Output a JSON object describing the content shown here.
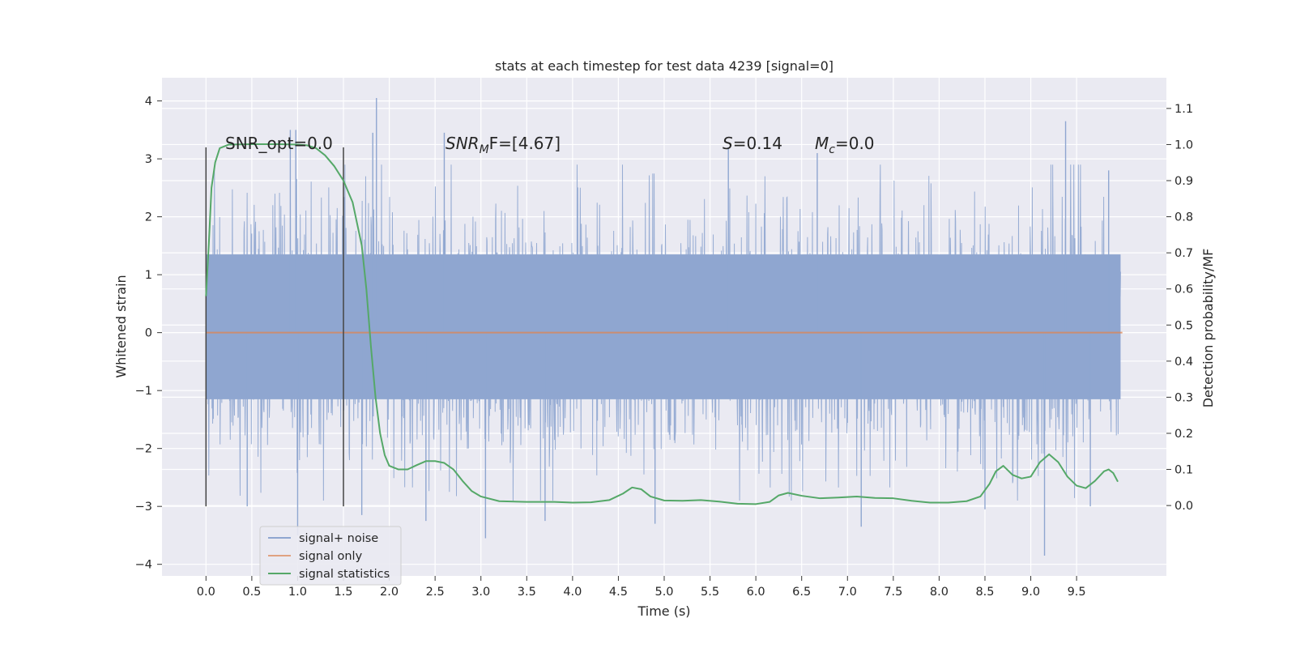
{
  "chart_data": {
    "type": "line",
    "title": "stats at each timestep for test data 4239 [signal=0]",
    "xlabel": "Time (s)",
    "ylabel": "Whitened strain",
    "ylabel_right": "Detection probability/MF",
    "xlim": [
      -0.48,
      10.48
    ],
    "ylim": [
      -4.2,
      4.4
    ],
    "ylim_right": [
      -0.195,
      1.185
    ],
    "x_ticks": [
      "0.0",
      "0.5",
      "1.0",
      "1.5",
      "2.0",
      "2.5",
      "3.0",
      "3.5",
      "4.0",
      "4.5",
      "5.0",
      "5.5",
      "6.0",
      "6.5",
      "7.0",
      "7.5",
      "8.0",
      "8.5",
      "9.0",
      "9.5"
    ],
    "y_ticks": [
      "4",
      "3",
      "2",
      "1",
      "0",
      "−1",
      "−2",
      "−3",
      "−4"
    ],
    "y_right_ticks": [
      "1.1",
      "1.0",
      "0.9",
      "0.8",
      "0.7",
      "0.6",
      "0.5",
      "0.4",
      "0.3",
      "0.2",
      "0.1",
      "0.0"
    ],
    "grid": true,
    "legend_position": "lower-left",
    "colors": {
      "noise": "#8fa6d0",
      "signal": "#dd8452",
      "stats": "#55a868",
      "markers": "#444444",
      "axes_bg": "#eaeaf2",
      "grid": "#ffffff"
    },
    "vertical_markers": [
      0.0,
      1.5
    ],
    "vertical_marker_range": [
      -3.0,
      3.2
    ],
    "annotations": {
      "snr_opt": "SNR_opt=0.0",
      "snr_mf_symbol": "SNR",
      "snr_mf_sub": "M",
      "snr_mf_value": "F=[4.67]",
      "s_symbol": "S",
      "s_value": "=0.14",
      "mc_symbol": "M",
      "mc_sub": "c",
      "mc_value": "=0.0"
    },
    "series": [
      {
        "name": "signal+ noise",
        "kind": "noise",
        "t_range": [
          0.0,
          9.98
        ],
        "core_band": [
          -1.15,
          1.35
        ],
        "spikes": [
          {
            "x": 0.92,
            "y": 3.5
          },
          {
            "x": 0.98,
            "y": 3.5
          },
          {
            "x": 1.82,
            "y": 3.45
          },
          {
            "x": 1.86,
            "y": 4.05
          },
          {
            "x": 2.6,
            "y": 3.45
          },
          {
            "x": 5.7,
            "y": 3.2
          },
          {
            "x": 6.67,
            "y": 3.1
          },
          {
            "x": 9.38,
            "y": 3.65
          },
          {
            "x": 9.85,
            "y": 2.8
          },
          {
            "x": 1.0,
            "y": -3.5
          },
          {
            "x": 3.05,
            "y": -3.55
          },
          {
            "x": 9.15,
            "y": -3.85
          },
          {
            "x": 7.15,
            "y": -3.35
          },
          {
            "x": 2.4,
            "y": -3.25
          },
          {
            "x": 0.45,
            "y": -3.0
          },
          {
            "x": 4.9,
            "y": -3.3
          },
          {
            "x": 1.7,
            "y": -3.15
          },
          {
            "x": 8.5,
            "y": -3.05
          },
          {
            "x": 9.65,
            "y": -3.0
          },
          {
            "x": 3.7,
            "y": -3.25
          }
        ]
      },
      {
        "name": "signal only",
        "kind": "signal",
        "points": [
          [
            0.0,
            0.0
          ],
          [
            10.0,
            0.0
          ]
        ]
      },
      {
        "name": "signal statistics",
        "kind": "stats",
        "axis": "right",
        "points": [
          [
            0.0,
            0.58
          ],
          [
            0.03,
            0.72
          ],
          [
            0.06,
            0.88
          ],
          [
            0.1,
            0.95
          ],
          [
            0.15,
            0.99
          ],
          [
            0.25,
            1.0
          ],
          [
            0.5,
            1.001
          ],
          [
            0.8,
            1.001
          ],
          [
            1.0,
            1.0
          ],
          [
            1.1,
            0.998
          ],
          [
            1.2,
            0.99
          ],
          [
            1.3,
            0.97
          ],
          [
            1.4,
            0.94
          ],
          [
            1.5,
            0.9
          ],
          [
            1.6,
            0.84
          ],
          [
            1.7,
            0.72
          ],
          [
            1.75,
            0.6
          ],
          [
            1.8,
            0.44
          ],
          [
            1.85,
            0.3
          ],
          [
            1.9,
            0.2
          ],
          [
            1.95,
            0.14
          ],
          [
            2.0,
            0.11
          ],
          [
            2.1,
            0.1
          ],
          [
            2.2,
            0.1
          ],
          [
            2.3,
            0.112
          ],
          [
            2.4,
            0.123
          ],
          [
            2.5,
            0.123
          ],
          [
            2.6,
            0.118
          ],
          [
            2.7,
            0.1
          ],
          [
            2.8,
            0.068
          ],
          [
            2.9,
            0.04
          ],
          [
            3.0,
            0.025
          ],
          [
            3.2,
            0.012
          ],
          [
            3.5,
            0.01
          ],
          [
            3.8,
            0.01
          ],
          [
            4.0,
            0.008
          ],
          [
            4.2,
            0.009
          ],
          [
            4.4,
            0.015
          ],
          [
            4.55,
            0.033
          ],
          [
            4.65,
            0.05
          ],
          [
            4.75,
            0.045
          ],
          [
            4.85,
            0.025
          ],
          [
            5.0,
            0.014
          ],
          [
            5.2,
            0.013
          ],
          [
            5.4,
            0.015
          ],
          [
            5.6,
            0.011
          ],
          [
            5.8,
            0.005
          ],
          [
            6.0,
            0.004
          ],
          [
            6.15,
            0.01
          ],
          [
            6.25,
            0.028
          ],
          [
            6.35,
            0.035
          ],
          [
            6.5,
            0.027
          ],
          [
            6.7,
            0.02
          ],
          [
            6.9,
            0.022
          ],
          [
            7.1,
            0.025
          ],
          [
            7.3,
            0.021
          ],
          [
            7.5,
            0.02
          ],
          [
            7.7,
            0.013
          ],
          [
            7.9,
            0.008
          ],
          [
            8.1,
            0.008
          ],
          [
            8.3,
            0.012
          ],
          [
            8.45,
            0.025
          ],
          [
            8.55,
            0.06
          ],
          [
            8.62,
            0.095
          ],
          [
            8.7,
            0.11
          ],
          [
            8.8,
            0.085
          ],
          [
            8.9,
            0.075
          ],
          [
            9.0,
            0.08
          ],
          [
            9.1,
            0.12
          ],
          [
            9.2,
            0.142
          ],
          [
            9.3,
            0.12
          ],
          [
            9.4,
            0.08
          ],
          [
            9.5,
            0.055
          ],
          [
            9.6,
            0.048
          ],
          [
            9.7,
            0.068
          ],
          [
            9.8,
            0.095
          ],
          [
            9.85,
            0.1
          ],
          [
            9.9,
            0.09
          ],
          [
            9.95,
            0.066
          ]
        ]
      }
    ]
  }
}
